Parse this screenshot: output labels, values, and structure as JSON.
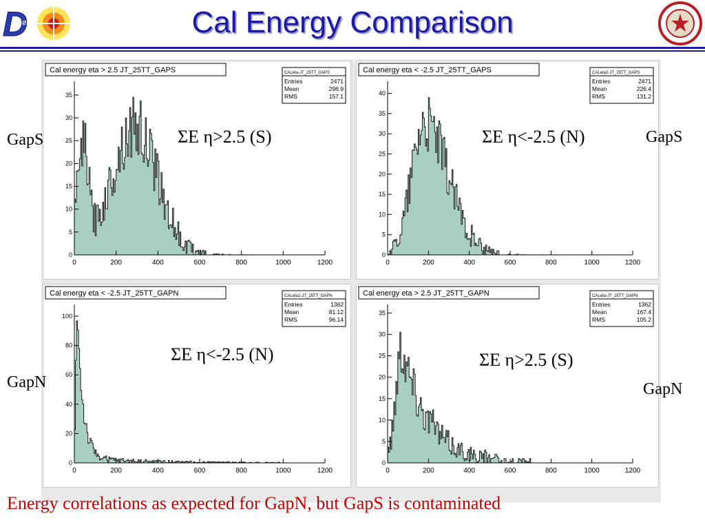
{
  "title": "Cal Energy Comparison",
  "caption": "Energy correlations as expected for GapN, but GapS is contaminated",
  "colors": {
    "title": "#1a1aa6",
    "fill": "#a8cfc2",
    "caption": "#cc0000"
  },
  "labels": {
    "p1_side": "GapS",
    "p1_annot": "ΣE η>2.5 (S)",
    "p2_side": "GapS",
    "p2_annot": "ΣE η<-2.5 (N)",
    "p3_side": "GapN",
    "p3_annot": "ΣE η<-2.5 (N)",
    "p4_side": "GapN",
    "p4_annot": "ΣE η>2.5 (S)"
  },
  "chart_data": [
    {
      "type": "bar",
      "title": "Cal energy eta > 2.5 JT_25TT_GAPS",
      "stats": {
        "name": "CALeta-JT_25TT_GAPS",
        "entries": "2471",
        "mean": "296.9",
        "rms": "157.1"
      },
      "xlim": [
        0,
        1200
      ],
      "ylim": [
        0,
        38
      ],
      "xticks": [
        0,
        200,
        400,
        600,
        800,
        1000,
        1200
      ],
      "yticks": [
        0,
        5,
        10,
        15,
        20,
        25,
        30,
        35
      ],
      "bin_width": 5,
      "shape": {
        "dist": "double",
        "peak1": 40,
        "width1": 25,
        "amp1": 24,
        "peak2": 290,
        "width2": 110,
        "amp2": 28,
        "tail": 0,
        "xmax": 880
      }
    },
    {
      "type": "bar",
      "title": "Cal energy eta < -2.5 JT_25TT_GAPS",
      "stats": {
        "name": "CALeta2-JT_25TT_GAPS",
        "entries": "2471",
        "mean": "226.4",
        "rms": "131.2"
      },
      "xlim": [
        0,
        1200
      ],
      "ylim": [
        0,
        43
      ],
      "xticks": [
        0,
        200,
        400,
        600,
        800,
        1000,
        1200
      ],
      "yticks": [
        0,
        5,
        10,
        15,
        20,
        25,
        30,
        35,
        40
      ],
      "bin_width": 5,
      "shape": {
        "dist": "single",
        "peak1": 180,
        "width1": 90,
        "amp1": 33,
        "tail": 0,
        "xmax": 870
      }
    },
    {
      "type": "bar",
      "title": "Cal energy eta < -2.5 JT_25TT_GAPN",
      "stats": {
        "name": "CALeta2-JT_25TT_GAPN",
        "entries": "1362",
        "mean": "81.12",
        "rms": "96.14"
      },
      "xlim": [
        0,
        1200
      ],
      "ylim": [
        0,
        108
      ],
      "xticks": [
        0,
        200,
        400,
        600,
        800,
        1000,
        1200
      ],
      "yticks": [
        0,
        20,
        40,
        60,
        80,
        100
      ],
      "bin_width": 5,
      "shape": {
        "dist": "exp",
        "peak1": 12,
        "decay": 28,
        "amp1": 104,
        "tail": 3,
        "taildecay": 260,
        "xmax": 1000
      }
    },
    {
      "type": "bar",
      "title": "Cal energy eta > 2.5 JT_25TT_GAPN",
      "stats": {
        "name": "CALeta-JT_25TT_GAPN",
        "entries": "1362",
        "mean": "167.4",
        "rms": "105.2"
      },
      "xlim": [
        0,
        1200
      ],
      "ylim": [
        0,
        37
      ],
      "xticks": [
        0,
        200,
        400,
        600,
        800,
        1000,
        1200
      ],
      "yticks": [
        0,
        5,
        10,
        15,
        20,
        25,
        30,
        35
      ],
      "bin_width": 5,
      "shape": {
        "dist": "skew",
        "peak1": 70,
        "rise": 30,
        "decay": 130,
        "amp1": 28,
        "tail": 0,
        "xmax": 700
      }
    }
  ]
}
